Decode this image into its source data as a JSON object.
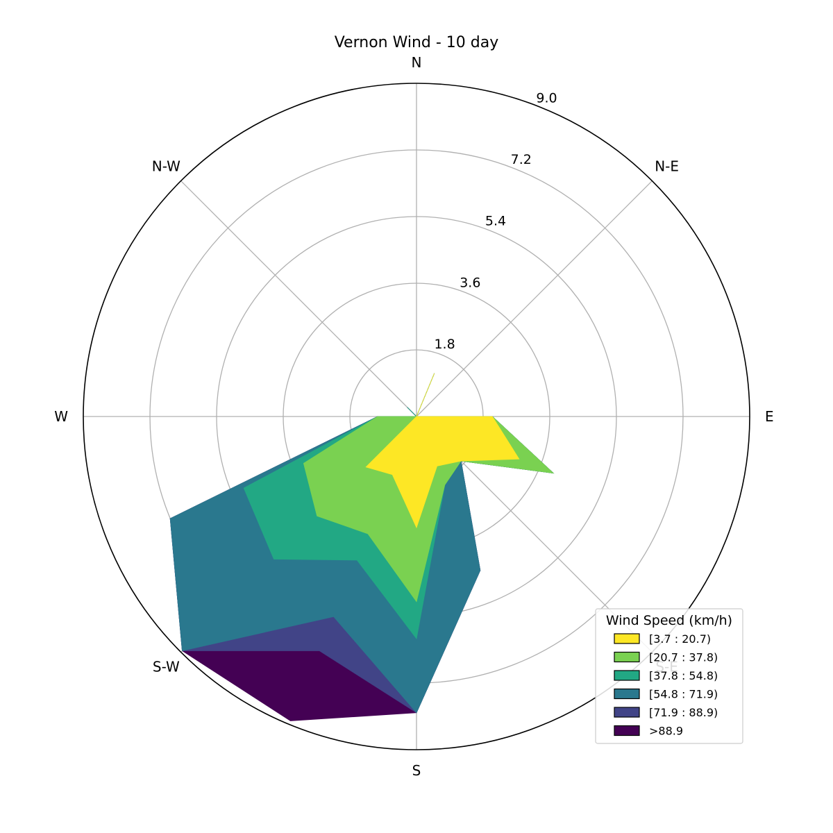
{
  "chart_data": {
    "type": "windrose",
    "title": "Vernon Wind - 10 day",
    "directions": [
      "N",
      "N-E",
      "E",
      "S-E",
      "S",
      "S-W",
      "W",
      "N-W"
    ],
    "radial_ticks": [
      "1.8",
      "3.6",
      "5.4",
      "7.2",
      "9.0"
    ],
    "radial_values": [
      1.8,
      3.6,
      5.4,
      7.2,
      9.0
    ],
    "rmax": 9.0,
    "grid": true,
    "legend": {
      "title": "Wind Speed (km/h)",
      "placement": "lower-right",
      "entries": [
        "[3.7 : 20.7)",
        "[20.7 : 37.8)",
        "[37.8 : 54.8)",
        "[54.8 : 71.9)",
        "[71.9 : 88.9)",
        ">88.9"
      ]
    },
    "colors": [
      "#fde725",
      "#7ad151",
      "#22a884",
      "#2a788e",
      "#414487",
      "#440154"
    ],
    "sector_angles_deg": [
      0,
      22.5,
      45,
      67.5,
      90,
      112.5,
      135,
      157.5,
      180,
      202.5,
      225,
      247.5,
      270,
      292.5,
      315,
      337.5
    ],
    "series": [
      {
        "name": "[3.7 : 20.7)",
        "values": [
          0,
          1.26,
          0,
          0,
          2.05,
          3.0,
          1.7,
          1.45,
          3.0,
          1.7,
          1.93,
          0,
          0,
          0,
          0,
          0
        ]
      },
      {
        "name": "[20.7 : 37.8)",
        "values": [
          0,
          1.26,
          0,
          0,
          2.05,
          4.0,
          1.7,
          2.0,
          5.0,
          3.43,
          3.8,
          3.3,
          1.05,
          0,
          0,
          0
        ]
      },
      {
        "name": "[37.8 : 54.8)",
        "values": [
          0,
          1.26,
          0,
          0,
          2.05,
          4.0,
          1.7,
          2.0,
          6.0,
          4.2,
          5.45,
          5.05,
          1.05,
          0,
          0.35,
          0
        ]
      },
      {
        "name": "[54.8 : 71.9)",
        "values": [
          0,
          1.26,
          0,
          0,
          2.05,
          4.0,
          1.7,
          4.5,
          8.0,
          5.85,
          8.95,
          7.2,
          1.05,
          0,
          0.35,
          0
        ]
      },
      {
        "name": "[71.9 : 88.9)",
        "values": [
          0,
          1.26,
          0,
          0,
          2.05,
          4.0,
          1.7,
          4.5,
          8.0,
          6.85,
          8.95,
          7.2,
          1.05,
          0,
          0.35,
          0
        ]
      },
      {
        "name": ">88.9",
        "values": [
          0,
          1.26,
          0,
          0,
          2.05,
          4.0,
          1.7,
          4.5,
          8.0,
          8.9,
          8.95,
          7.2,
          1.05,
          0,
          0.35,
          0
        ]
      }
    ]
  }
}
